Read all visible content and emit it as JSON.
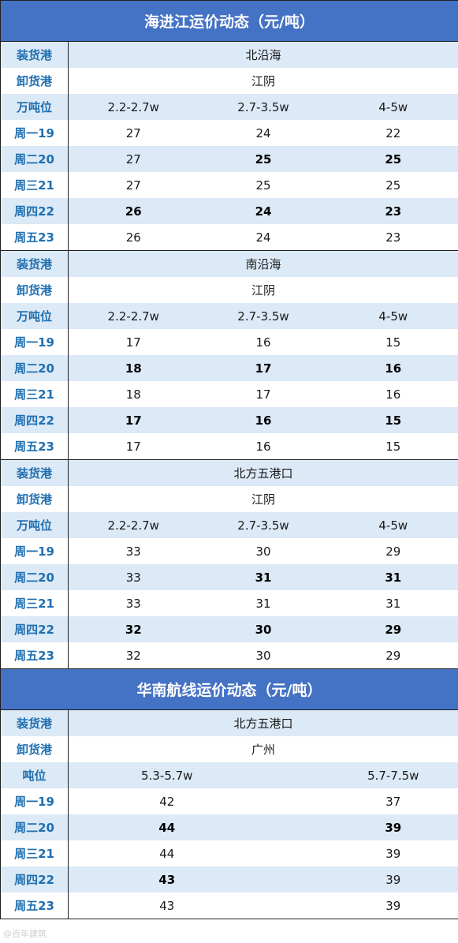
{
  "sections": [
    {
      "title": "海进江运价动态（元/吨）",
      "blocks": [
        {
          "load_label": "装货港",
          "load": "北沿海",
          "unload_label": "卸货港",
          "unload": "江阴",
          "tonnage_label": "万吨位",
          "tonnage": [
            "2.2-2.7w",
            "2.7-3.5w",
            "4-5w"
          ],
          "rows": [
            {
              "day": "周一19",
              "values": [
                "27",
                "24",
                "22"
              ],
              "bold": [
                false,
                false,
                false
              ]
            },
            {
              "day": "周二20",
              "values": [
                "27",
                "25",
                "25"
              ],
              "bold": [
                false,
                true,
                true
              ]
            },
            {
              "day": "周三21",
              "values": [
                "27",
                "25",
                "25"
              ],
              "bold": [
                false,
                false,
                false
              ]
            },
            {
              "day": "周四22",
              "values": [
                "26",
                "24",
                "23"
              ],
              "bold": [
                true,
                true,
                true
              ]
            },
            {
              "day": "周五23",
              "values": [
                "26",
                "24",
                "23"
              ],
              "bold": [
                false,
                false,
                false
              ]
            }
          ]
        },
        {
          "load_label": "装货港",
          "load": "南沿海",
          "unload_label": "卸货港",
          "unload": "江阴",
          "tonnage_label": "万吨位",
          "tonnage": [
            "2.2-2.7w",
            "2.7-3.5w",
            "4-5w"
          ],
          "rows": [
            {
              "day": "周一19",
              "values": [
                "17",
                "16",
                "15"
              ],
              "bold": [
                false,
                false,
                false
              ]
            },
            {
              "day": "周二20",
              "values": [
                "18",
                "17",
                "16"
              ],
              "bold": [
                true,
                true,
                true
              ]
            },
            {
              "day": "周三21",
              "values": [
                "18",
                "17",
                "16"
              ],
              "bold": [
                false,
                false,
                false
              ]
            },
            {
              "day": "周四22",
              "values": [
                "17",
                "16",
                "15"
              ],
              "bold": [
                true,
                true,
                true
              ]
            },
            {
              "day": "周五23",
              "values": [
                "17",
                "16",
                "15"
              ],
              "bold": [
                false,
                false,
                false
              ]
            }
          ]
        },
        {
          "load_label": "装货港",
          "load": "北方五港口",
          "unload_label": "卸货港",
          "unload": "江阴",
          "tonnage_label": "万吨位",
          "tonnage": [
            "2.2-2.7w",
            "2.7-3.5w",
            "4-5w"
          ],
          "rows": [
            {
              "day": "周一19",
              "values": [
                "33",
                "30",
                "29"
              ],
              "bold": [
                false,
                false,
                false
              ]
            },
            {
              "day": "周二20",
              "values": [
                "33",
                "31",
                "31"
              ],
              "bold": [
                false,
                true,
                true
              ]
            },
            {
              "day": "周三21",
              "values": [
                "33",
                "31",
                "31"
              ],
              "bold": [
                false,
                false,
                false
              ]
            },
            {
              "day": "周四22",
              "values": [
                "32",
                "30",
                "29"
              ],
              "bold": [
                true,
                true,
                true
              ]
            },
            {
              "day": "周五23",
              "values": [
                "32",
                "30",
                "29"
              ],
              "bold": [
                false,
                false,
                false
              ]
            }
          ]
        }
      ]
    },
    {
      "title": "华南航线运价动态（元/吨）",
      "blocks": [
        {
          "load_label": "装货港",
          "load": "北方五港口",
          "unload_label": "卸货港",
          "unload": "广州",
          "tonnage_label": "吨位",
          "tonnage": [
            "5.3-5.7w",
            "5.7-7.5w"
          ],
          "rows": [
            {
              "day": "周一19",
              "values": [
                "42",
                "37"
              ],
              "bold": [
                false,
                false
              ]
            },
            {
              "day": "周二20",
              "values": [
                "44",
                "39"
              ],
              "bold": [
                true,
                true
              ]
            },
            {
              "day": "周三21",
              "values": [
                "44",
                "39"
              ],
              "bold": [
                false,
                false
              ]
            },
            {
              "day": "周四22",
              "values": [
                "43",
                "39"
              ],
              "bold": [
                true,
                false
              ]
            },
            {
              "day": "周五23",
              "values": [
                "43",
                "39"
              ],
              "bold": [
                false,
                false
              ]
            }
          ]
        }
      ]
    }
  ],
  "colors": {
    "header_bg": "#4472c4",
    "label_text": "#1f6fb0",
    "stripe": "#dce9f6"
  },
  "watermark": "@百年建筑"
}
